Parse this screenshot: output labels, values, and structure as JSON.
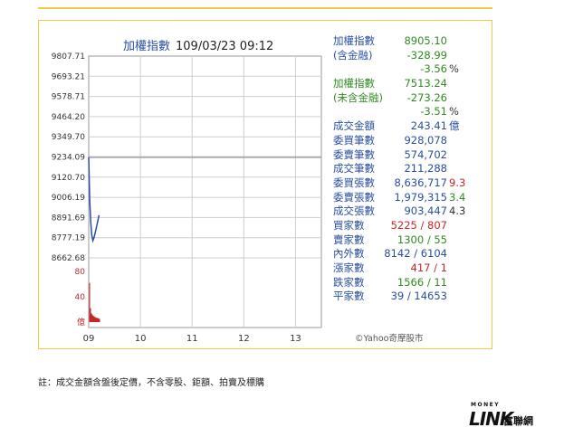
{
  "header": {
    "title": "加權指數",
    "datetime": "109/03/23 09:12"
  },
  "chart_data": {
    "type": "line",
    "x_ticks": [
      "09",
      "10",
      "11",
      "12",
      "13"
    ],
    "y_ticks": [
      "9807.71",
      "9693.21",
      "9578.71",
      "9464.20",
      "9349.70",
      "9234.09",
      "9120.70",
      "9006.19",
      "8891.69",
      "8777.19",
      "8662.68"
    ],
    "ylim": [
      8662.68,
      9807.71
    ],
    "reference_value": 9234.09,
    "series": [
      {
        "x": [
          9.0,
          9.02,
          9.04,
          9.06,
          9.08,
          9.1,
          9.13,
          9.16,
          9.2
        ],
        "values": [
          9234.09,
          8990.0,
          8860.0,
          8790.0,
          8760.0,
          8775.0,
          8810.0,
          8850.0,
          8905.1
        ]
      }
    ],
    "volume_ticks": [
      "80",
      "40",
      "億"
    ],
    "volume_ylim": [
      0,
      80
    ],
    "volume_values": [
      62,
      22,
      14,
      12,
      10,
      9,
      8,
      7,
      7,
      6,
      6,
      5
    ]
  },
  "stats": [
    {
      "label": "加權指數",
      "value": "8905.10",
      "value_color": "green"
    },
    {
      "label": "(含金融)",
      "value": "-328.99",
      "value_color": "green"
    },
    {
      "label": "",
      "value": "-3.56",
      "value_color": "green",
      "extra": "%",
      "extra_color": "dark"
    },
    {
      "label": "加權指數",
      "value": "7513.24",
      "value_color": "green",
      "label_color": "green"
    },
    {
      "label": "(未含金融)",
      "value": "-273.26",
      "value_color": "green",
      "label_color": "green"
    },
    {
      "label": "",
      "value": "-3.51",
      "value_color": "green",
      "extra": "%",
      "extra_color": "dark"
    },
    {
      "label": "成交金額",
      "value": "243.41",
      "value_color": "blue",
      "extra": "億",
      "extra_color": "blue"
    },
    {
      "label": "委買筆數",
      "value": "928,078",
      "value_color": "blue"
    },
    {
      "label": "委賣筆數",
      "value": "574,702",
      "value_color": "blue"
    },
    {
      "label": "成交筆數",
      "value": "211,288",
      "value_color": "blue"
    },
    {
      "label": "委買張數",
      "value": "8,636,717",
      "value_color": "blue",
      "extra": "9.3",
      "extra_color": "red"
    },
    {
      "label": "委賣張數",
      "value": "1,979,315",
      "value_color": "blue",
      "extra": "3.4",
      "extra_color": "green"
    },
    {
      "label": "成交張數",
      "value": "903,447",
      "value_color": "blue",
      "extra": "4.3",
      "extra_color": "dark"
    },
    {
      "label": "買家數",
      "value": "5225 / 807",
      "value_color": "red"
    },
    {
      "label": "賣家數",
      "value": "1300 / 55",
      "value_color": "green"
    },
    {
      "label": "內外數",
      "value": "8142 / 6104",
      "value_color": "blue"
    },
    {
      "label": "漲家數",
      "value": "417 / 1",
      "value_color": "red"
    },
    {
      "label": "跌家數",
      "value": "1566 / 11",
      "value_color": "green"
    },
    {
      "label": "平家數",
      "value": "39 / 14653",
      "value_color": "blue"
    }
  ],
  "copyright": "©Yahoo奇摩股市",
  "footnote": "註：成交金額含盤後定價，不含零股、鉅額、拍賣及標購",
  "logo": {
    "money": "MONEY",
    "link": "LINK",
    "cn": "富聯網"
  },
  "colors": {
    "line": "#2a4ea0",
    "reference": "#aaaaaa",
    "volume": "#c62828",
    "border": "#f2c94c",
    "grid": "#cfcfcf"
  }
}
